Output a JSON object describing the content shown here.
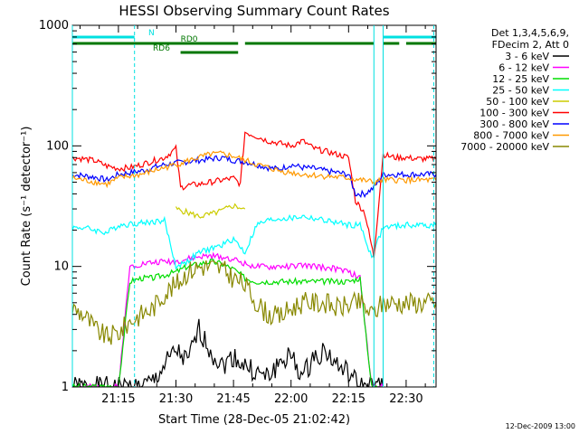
{
  "chart_data": {
    "type": "line",
    "title": "HESSI Observing Summary Count Rates",
    "xlabel": "Start Time (28-Dec-05 21:02:42)",
    "ylabel": "Count Rate (s⁻¹ detector⁻¹)",
    "yscale": "log",
    "ylim": [
      1,
      1000
    ],
    "xlim_minutes": [
      21.05,
      22.63
    ],
    "x_tick_labels": [
      "21:15",
      "21:30",
      "21:45",
      "22:00",
      "22:15",
      "22:30"
    ],
    "y_tick_labels": [
      "1",
      "10",
      "100",
      "1000"
    ],
    "legend": {
      "placement": "right",
      "header": [
        "Det 1,3,4,5,6,9,",
        "FDecim 2, Att 0"
      ],
      "entries": [
        {
          "label": "3 - 6 keV",
          "color": "#000000"
        },
        {
          "label": "6 - 12 keV",
          "color": "#ff00ff"
        },
        {
          "label": "12 - 25 keV",
          "color": "#00dd00"
        },
        {
          "label": "25 - 50 keV",
          "color": "#00ffff"
        },
        {
          "label": "50 - 100 keV",
          "color": "#cccc00"
        },
        {
          "label": "100 - 300 keV",
          "color": "#ff0000"
        },
        {
          "label": "300 - 800 keV",
          "color": "#0000ff"
        },
        {
          "label": "800 - 7000 keV",
          "color": "#ff9900"
        },
        {
          "label": "7000 - 20000 keV",
          "color": "#888800"
        }
      ]
    },
    "flags": [
      {
        "label": "N",
        "color": "#00e0e0",
        "segments": [
          [
            21.05,
            21.32
          ],
          [
            22.4,
            22.63
          ]
        ]
      },
      {
        "label": "RD0",
        "color": "#007700",
        "segments": [
          [
            21.05,
            21.77
          ],
          [
            21.8,
            22.36
          ],
          [
            22.4,
            22.47
          ],
          [
            22.5,
            22.63
          ]
        ]
      },
      {
        "label": "RD6",
        "color": "#007700",
        "segments": [
          [
            21.52,
            21.77
          ]
        ]
      }
    ],
    "series": [
      {
        "name": "3 - 6 keV",
        "color": "#000000",
        "x": [
          21.05,
          21.3,
          21.35,
          21.4,
          21.45,
          21.5,
          21.55,
          21.6,
          21.65,
          21.7,
          21.75,
          21.8,
          21.85,
          21.9,
          21.95,
          22.0,
          22.05,
          22.1,
          22.15,
          22.2,
          22.25,
          22.3,
          22.35,
          22.4
        ],
        "y": [
          1,
          1,
          1,
          1.1,
          1.5,
          2,
          1.6,
          3,
          2,
          1.5,
          1.8,
          1.5,
          1.3,
          1.2,
          1.6,
          1.8,
          1.2,
          1.8,
          2,
          1.5,
          1.3,
          1,
          1,
          1
        ]
      },
      {
        "name": "6 - 12 keV",
        "color": "#ff00ff",
        "x": [
          21.05,
          21.25,
          21.3,
          21.35,
          21.4,
          21.45,
          21.5,
          21.55,
          21.6,
          21.65,
          21.7,
          21.75,
          21.8,
          21.85,
          21.9,
          21.95,
          22.0,
          22.05,
          22.1,
          22.15,
          22.2,
          22.25,
          22.3,
          22.35,
          22.4
        ],
        "y": [
          1,
          1,
          10,
          10.5,
          10.8,
          11,
          11,
          11.5,
          12,
          12.2,
          12,
          11.5,
          10.5,
          10,
          9.8,
          10,
          10,
          10.2,
          10,
          9.8,
          9.5,
          9,
          8,
          1,
          1
        ]
      },
      {
        "name": "12 - 25 keV",
        "color": "#00dd00",
        "x": [
          21.05,
          21.25,
          21.3,
          21.35,
          21.4,
          21.45,
          21.5,
          21.55,
          21.6,
          21.65,
          21.7,
          21.75,
          21.8,
          21.85,
          21.9,
          21.95,
          22.0,
          22.05,
          22.1,
          22.15,
          22.2,
          22.25,
          22.3,
          22.35,
          22.4
        ],
        "y": [
          1,
          1,
          7.5,
          8,
          8,
          8.5,
          9,
          10,
          10.5,
          11,
          10.5,
          9.5,
          8,
          7.5,
          7.5,
          7.5,
          7.5,
          7.5,
          7.5,
          7.5,
          7.5,
          7.5,
          8,
          1,
          1
        ]
      },
      {
        "name": "25 - 50 keV",
        "color": "#00ffff",
        "x": [
          21.05,
          21.1,
          21.2,
          21.25,
          21.35,
          21.45,
          21.5,
          21.55,
          21.6,
          21.65,
          21.7,
          21.75,
          21.8,
          21.85,
          21.9,
          21.95,
          22.0,
          22.05,
          22.1,
          22.15,
          22.2,
          22.25,
          22.3,
          22.35,
          22.4,
          22.5,
          22.63
        ],
        "y": [
          21,
          21,
          19,
          22,
          23,
          24,
          10,
          11,
          13,
          14,
          15,
          17,
          13,
          22,
          24,
          25,
          25,
          26,
          25,
          24,
          23,
          22,
          22,
          12,
          21,
          22,
          22
        ]
      },
      {
        "name": "50 - 100 keV",
        "color": "#cccc00",
        "x": [
          21.5,
          21.55,
          21.6,
          21.65,
          21.7,
          21.75,
          21.8
        ],
        "y": [
          30,
          28,
          26,
          27,
          29,
          32,
          30
        ]
      },
      {
        "name": "100 - 300 keV",
        "color": "#ff0000",
        "x": [
          21.05,
          21.1,
          21.15,
          21.2,
          21.25,
          21.3,
          21.35,
          21.4,
          21.45,
          21.5,
          21.52,
          21.55,
          21.6,
          21.65,
          21.7,
          21.75,
          21.78,
          21.8,
          21.85,
          21.9,
          21.95,
          22.0,
          22.05,
          22.1,
          22.15,
          22.2,
          22.25,
          22.28,
          22.32,
          22.36,
          22.4,
          22.45,
          22.5,
          22.55,
          22.63
        ],
        "y": [
          80,
          78,
          75,
          68,
          65,
          66,
          70,
          75,
          80,
          95,
          45,
          47,
          48,
          50,
          52,
          54,
          48,
          130,
          120,
          110,
          105,
          100,
          110,
          95,
          90,
          85,
          80,
          35,
          28,
          12,
          85,
          80,
          80,
          78,
          78
        ]
      },
      {
        "name": "300 - 800 keV",
        "color": "#0000ff",
        "x": [
          21.05,
          21.15,
          21.2,
          21.25,
          21.3,
          21.35,
          21.4,
          21.45,
          21.5,
          21.55,
          21.6,
          21.65,
          21.7,
          21.75,
          21.8,
          21.85,
          21.9,
          21.95,
          22.0,
          22.05,
          22.1,
          22.15,
          22.2,
          22.25,
          22.28,
          22.32,
          22.36,
          22.4,
          22.63
        ],
        "y": [
          58,
          55,
          52,
          58,
          60,
          62,
          66,
          70,
          72,
          74,
          76,
          78,
          80,
          76,
          74,
          70,
          66,
          64,
          70,
          66,
          65,
          62,
          60,
          58,
          40,
          40,
          45,
          58,
          58
        ]
      },
      {
        "name": "800 - 7000 keV",
        "color": "#ff9900",
        "x": [
          21.05,
          21.15,
          21.2,
          21.25,
          21.3,
          21.35,
          21.4,
          21.45,
          21.5,
          21.55,
          21.6,
          21.65,
          21.7,
          21.75,
          21.8,
          21.85,
          21.9,
          21.95,
          22.0,
          22.05,
          22.1,
          22.15,
          22.2,
          22.25,
          22.36,
          22.4,
          22.63
        ],
        "y": [
          54,
          50,
          48,
          54,
          56,
          58,
          62,
          66,
          70,
          75,
          80,
          85,
          86,
          82,
          76,
          70,
          66,
          62,
          60,
          58,
          57,
          56,
          55,
          54,
          50,
          52,
          52
        ]
      },
      {
        "name": "7000 - 20000 keV",
        "color": "#888800",
        "x": [
          21.05,
          21.1,
          21.15,
          21.2,
          21.25,
          21.3,
          21.35,
          21.4,
          21.45,
          21.5,
          21.55,
          21.6,
          21.65,
          21.7,
          21.75,
          21.8,
          21.85,
          21.9,
          21.95,
          22.0,
          22.05,
          22.1,
          22.15,
          22.2,
          22.25,
          22.3,
          22.35,
          22.4,
          22.45,
          22.5,
          22.55,
          22.63
        ],
        "y": [
          4.5,
          4,
          3,
          2.6,
          2.8,
          3.5,
          4,
          4.5,
          6,
          7,
          9,
          10,
          10,
          9.5,
          8,
          7,
          5,
          4,
          3.8,
          4.5,
          5,
          5,
          5,
          4.5,
          4.8,
          5,
          4,
          5,
          5,
          5,
          5,
          5
        ]
      }
    ]
  },
  "footer": {
    "date_stamp": "12-Dec-2009 13:00"
  }
}
